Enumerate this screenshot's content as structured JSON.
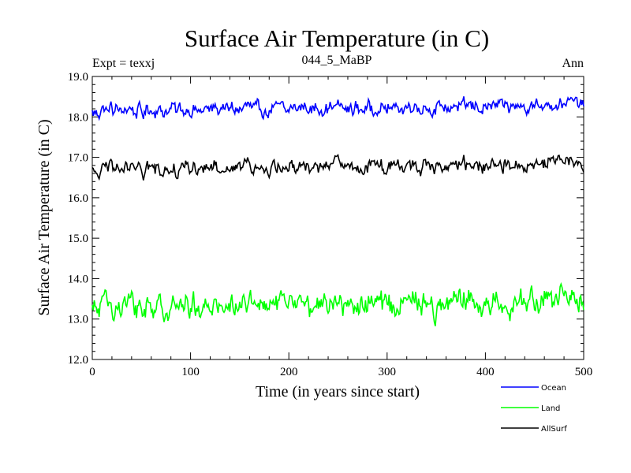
{
  "chart_data": {
    "type": "line",
    "title": "Surface Air Temperature (in C)",
    "subtitle": "044_5_MaBP",
    "left_label": "Expt = texxj",
    "right_label": "Ann",
    "xlabel": "Time (in years since start)",
    "ylabel": "Surface Air Temperature (in C)",
    "xlim": [
      0,
      500
    ],
    "ylim": [
      12.0,
      19.0
    ],
    "x_ticks": [
      "0",
      "100",
      "200",
      "300",
      "400",
      "500"
    ],
    "y_ticks": [
      "12.0",
      "13.0",
      "14.0",
      "15.0",
      "16.0",
      "17.0",
      "18.0",
      "19.0"
    ],
    "x_tick_values": [
      0,
      100,
      200,
      300,
      400,
      500
    ],
    "y_tick_values": [
      12,
      13,
      14,
      15,
      16,
      17,
      18,
      19
    ],
    "legend_position": "bottom-right",
    "series": [
      {
        "name": "Ocean",
        "color": "#0000ff",
        "mean": 18.15,
        "amplitude": 0.16,
        "start_year": 0,
        "end_year": 500,
        "min_approx": 17.85,
        "max_approx": 18.6
      },
      {
        "name": "Land",
        "color": "#00ff00",
        "mean": 13.3,
        "amplitude": 0.28,
        "start_year": 0,
        "end_year": 500,
        "min_approx": 12.7,
        "max_approx": 13.95
      },
      {
        "name": "AllSurf",
        "color": "#000000",
        "mean": 16.7,
        "amplitude": 0.17,
        "start_year": 0,
        "end_year": 500,
        "min_approx": 16.35,
        "max_approx": 17.2
      }
    ]
  }
}
